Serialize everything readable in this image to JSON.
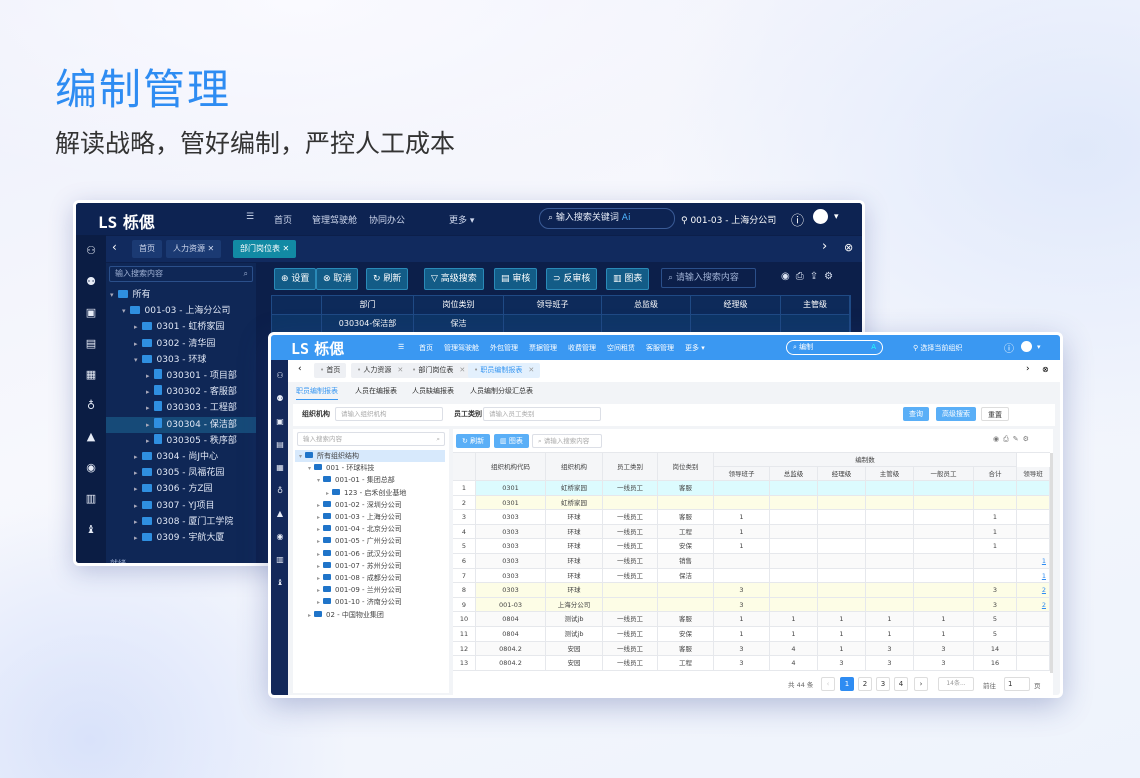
{
  "hero": {
    "title": "编制管理",
    "subtitle": "解读战略，管好编制，严控人工成本"
  },
  "colors": {
    "accent": "#2e8cf2",
    "dark_bg": "#0c1f4a",
    "light_header": "#3a98f2",
    "row_cyan": "#dcfbfe",
    "row_yellow": "#fdfde6"
  },
  "dark": {
    "logo": "栎偲",
    "nav": [
      "首页",
      "管理驾驶舱",
      "协同办公",
      "更多 ▾"
    ],
    "search_placeholder": "输入搜索关键词",
    "ai": "Ai",
    "org": "001-03 - 上海分公司",
    "tabs": [
      "首页",
      "人力资源",
      "部门岗位表"
    ],
    "tree_search": "输入搜索内容",
    "tree": [
      {
        "label": "所有",
        "level": 0,
        "type": "folder",
        "open": true
      },
      {
        "label": "001-03 - 上海分公司",
        "level": 1,
        "type": "folder",
        "open": true
      },
      {
        "label": "0301 - 虹桥家园",
        "level": 2,
        "type": "folder"
      },
      {
        "label": "0302 - 清华园",
        "level": 2,
        "type": "folder"
      },
      {
        "label": "0303 - 环球",
        "level": 2,
        "type": "folder",
        "open": true
      },
      {
        "label": "030301 - 项目部",
        "level": 3,
        "type": "doc"
      },
      {
        "label": "030302 - 客服部",
        "level": 3,
        "type": "doc"
      },
      {
        "label": "030303 - 工程部",
        "level": 3,
        "type": "doc"
      },
      {
        "label": "030304 - 保洁部",
        "level": 3,
        "type": "doc",
        "selected": true
      },
      {
        "label": "030305 - 秩序部",
        "level": 3,
        "type": "doc"
      },
      {
        "label": "0304 - 尚J中心",
        "level": 2,
        "type": "folder"
      },
      {
        "label": "0305 - 凤福花园",
        "level": 2,
        "type": "folder"
      },
      {
        "label": "0306 - 方Z园",
        "level": 2,
        "type": "folder"
      },
      {
        "label": "0307 - YJ项目",
        "level": 2,
        "type": "folder"
      },
      {
        "label": "0308 - 厦门工学院",
        "level": 2,
        "type": "folder"
      },
      {
        "label": "0309 - 宇航大厦",
        "level": 2,
        "type": "folder"
      }
    ],
    "toolbar": [
      "⊕ 设置",
      "⊗ 取消",
      "↻ 刷新",
      "▽ 高级搜索",
      "▤ 审核",
      "⊃ 反审核",
      "▥ 图表"
    ],
    "toolbar_search": "请输入搜索内容",
    "columns": [
      "部门",
      "岗位类别",
      "领导班子",
      "总监级",
      "经理级",
      "主管级"
    ],
    "rows": [
      [
        "030304-保洁部",
        "保洁",
        "",
        "",
        "",
        ""
      ]
    ],
    "status": "就绪"
  },
  "light": {
    "logo": "栎偲",
    "nav": [
      "首页",
      "管理驾驶舱",
      "外包管理",
      "票据管理",
      "收费管理",
      "空间租赁",
      "客服管理",
      "更多 ▾"
    ],
    "search_value": "编制",
    "ai": "A",
    "org": "选择当前组织",
    "tabs": [
      "首页",
      "人力资源",
      "部门岗位表",
      "职员编制报表"
    ],
    "subtabs": [
      "职员编制报表",
      "人员在编报表",
      "人员缺编报表",
      "人员编制分级汇总表"
    ],
    "filters": {
      "org_label": "组织机构",
      "org_placeholder": "请输入组织机构",
      "emp_label": "员工类别",
      "emp_placeholder": "请输入员工类别"
    },
    "buttons": {
      "query": "查询",
      "advanced": "高级搜索",
      "reset": "重置",
      "refresh": "刷新",
      "chart": "图表"
    },
    "tree_search": "输入搜索内容",
    "table_search": "请输入搜索内容",
    "tree": [
      {
        "label": "所有组织结构",
        "level": 0,
        "open": true,
        "selected": true
      },
      {
        "label": "001 - 环球科技",
        "level": 1,
        "open": true
      },
      {
        "label": "001-01 - 集团总部",
        "level": 2,
        "open": true
      },
      {
        "label": "123 - 启禾创业基地",
        "level": 3
      },
      {
        "label": "001-02 - 深圳分公司",
        "level": 2
      },
      {
        "label": "001-03 - 上海分公司",
        "level": 2
      },
      {
        "label": "001-04 - 北京分公司",
        "level": 2
      },
      {
        "label": "001-05 - 广州分公司",
        "level": 2
      },
      {
        "label": "001-06 - 武汉分公司",
        "level": 2
      },
      {
        "label": "001-07 - 苏州分公司",
        "level": 2
      },
      {
        "label": "001-08 - 成都分公司",
        "level": 2
      },
      {
        "label": "001-09 - 兰州分公司",
        "level": 2
      },
      {
        "label": "001-10 - 济南分公司",
        "level": 2
      },
      {
        "label": "02 - 中国物业集团",
        "level": 1
      }
    ],
    "group_header": "编制数",
    "columns": [
      "组织机构代码",
      "组织机构",
      "员工类别",
      "岗位类别",
      "领导班子",
      "总监级",
      "经理级",
      "主管级",
      "一般员工",
      "合计",
      "领导班"
    ],
    "rows": [
      {
        "n": "1",
        "cells": [
          "0301",
          "虹桥家园",
          "一线员工",
          "客服",
          "",
          "",
          "",
          "",
          "",
          "",
          ""
        ],
        "hl": "cyan"
      },
      {
        "n": "2",
        "cells": [
          "0301",
          "虹桥家园",
          "",
          "",
          "",
          "",
          "",
          "",
          "",
          "",
          ""
        ],
        "hl": "yellow"
      },
      {
        "n": "3",
        "cells": [
          "0303",
          "环球",
          "一线员工",
          "客服",
          "1",
          "",
          "",
          "",
          "",
          "1",
          ""
        ]
      },
      {
        "n": "4",
        "cells": [
          "0303",
          "环球",
          "一线员工",
          "工程",
          "1",
          "",
          "",
          "",
          "",
          "1",
          ""
        ]
      },
      {
        "n": "5",
        "cells": [
          "0303",
          "环球",
          "一线员工",
          "安保",
          "1",
          "",
          "",
          "",
          "",
          "1",
          ""
        ]
      },
      {
        "n": "6",
        "cells": [
          "0303",
          "环球",
          "一线员工",
          "销售",
          "",
          "",
          "",
          "",
          "",
          "",
          "1"
        ]
      },
      {
        "n": "7",
        "cells": [
          "0303",
          "环球",
          "一线员工",
          "保洁",
          "",
          "",
          "",
          "",
          "",
          "",
          "1"
        ]
      },
      {
        "n": "8",
        "cells": [
          "0303",
          "环球",
          "",
          "",
          "3",
          "",
          "",
          "",
          "",
          "3",
          "2"
        ],
        "hl": "yellow"
      },
      {
        "n": "9",
        "cells": [
          "001-03",
          "上海分公司",
          "",
          "",
          "3",
          "",
          "",
          "",
          "",
          "3",
          "2"
        ],
        "hl": "yellow"
      },
      {
        "n": "10",
        "cells": [
          "0804",
          "测试jb",
          "一线员工",
          "客服",
          "1",
          "1",
          "1",
          "1",
          "1",
          "5",
          ""
        ]
      },
      {
        "n": "11",
        "cells": [
          "0804",
          "测试jb",
          "一线员工",
          "安保",
          "1",
          "1",
          "1",
          "1",
          "1",
          "5",
          ""
        ]
      },
      {
        "n": "12",
        "cells": [
          "0804.2",
          "安园",
          "一线员工",
          "客服",
          "3",
          "4",
          "1",
          "3",
          "3",
          "14",
          ""
        ]
      },
      {
        "n": "13",
        "cells": [
          "0804.2",
          "安园",
          "一线员工",
          "工程",
          "3",
          "4",
          "3",
          "3",
          "3",
          "16",
          ""
        ]
      }
    ],
    "pagination": {
      "total": "共 44 条",
      "pages": [
        "1",
        "2",
        "3",
        "4"
      ],
      "current": "1",
      "page_size": "14条...",
      "goto_label": "前往",
      "goto_value": "1",
      "page_suffix": "页"
    }
  }
}
